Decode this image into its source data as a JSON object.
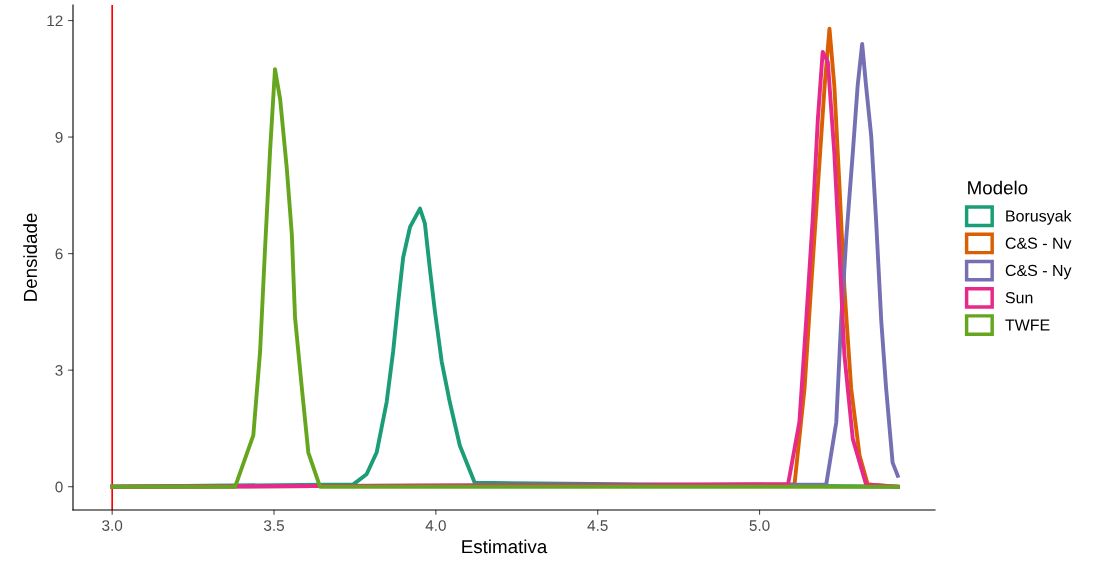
{
  "chart_data": {
    "type": "line",
    "xlabel": "Estimativa",
    "ylabel": "Densidade",
    "legend_title": "Modelo",
    "legend": "right",
    "grid": false,
    "marker": "none",
    "line_style": "solid",
    "xlim": [
      2.879,
      5.542
    ],
    "xticks": [
      {
        "value": 3.0,
        "label": "3.0"
      },
      {
        "value": 3.5,
        "label": "3.5"
      },
      {
        "value": 4.0,
        "label": "4.0"
      },
      {
        "value": 4.5,
        "label": "4.5"
      },
      {
        "value": 5.0,
        "label": "5.0"
      }
    ],
    "ylim": [
      -0.6,
      12.4
    ],
    "yticks": [
      0,
      3,
      6,
      9,
      12
    ],
    "ref_lines": [
      {
        "axis": "x",
        "value": 3.0,
        "label": null,
        "color": "#ff0000"
      }
    ],
    "series": [
      {
        "name": "Borusyak",
        "color": "#1b9e77",
        "x": [
          3.0,
          3.745,
          3.786,
          3.817,
          3.848,
          3.868,
          3.884,
          3.899,
          3.92,
          3.951,
          3.966,
          3.981,
          3.997,
          4.018,
          4.043,
          4.074,
          4.12,
          5.427
        ],
        "values": [
          0,
          0.06,
          0.32,
          0.88,
          2.18,
          3.48,
          4.78,
          5.9,
          6.68,
          7.16,
          6.78,
          5.64,
          4.52,
          3.22,
          2.18,
          1.06,
          0.1,
          0
        ]
      },
      {
        "name": "C&S - Nv",
        "color": "#d95f02",
        "x": [
          3.0,
          5.108,
          5.139,
          5.159,
          5.18,
          5.201,
          5.216,
          5.231,
          5.247,
          5.262,
          5.283,
          5.309,
          5.334,
          5.427
        ],
        "values": [
          0,
          0.06,
          2.53,
          5.12,
          7.72,
          10.32,
          11.79,
          10.32,
          7.72,
          5.12,
          2.53,
          0.8,
          0.06,
          0
        ]
      },
      {
        "name": "C&S - Ny",
        "color": "#7570b3",
        "x": [
          3.0,
          5.206,
          5.237,
          5.252,
          5.268,
          5.288,
          5.303,
          5.317,
          5.329,
          5.345,
          5.36,
          5.376,
          5.391,
          5.411,
          5.427
        ],
        "values": [
          0,
          0.06,
          1.66,
          4.26,
          6.42,
          8.59,
          10.32,
          11.4,
          10.32,
          9.02,
          6.86,
          4.26,
          2.53,
          0.62,
          0.28
        ]
      },
      {
        "name": "Sun",
        "color": "#e7298a",
        "x": [
          3.0,
          5.088,
          5.123,
          5.144,
          5.164,
          5.18,
          5.195,
          5.211,
          5.231,
          5.247,
          5.262,
          5.288,
          5.329,
          5.427
        ],
        "values": [
          0,
          0.06,
          1.66,
          4.26,
          6.86,
          9.45,
          11.19,
          10.93,
          8.59,
          6.0,
          3.4,
          1.23,
          0.06,
          0
        ]
      },
      {
        "name": "TWFE",
        "color": "#66a61e",
        "x": [
          3.0,
          3.38,
          3.436,
          3.457,
          3.472,
          3.488,
          3.503,
          3.519,
          3.539,
          3.555,
          3.565,
          3.585,
          3.606,
          3.642,
          5.427
        ],
        "values": [
          0,
          0,
          1.32,
          3.48,
          6.08,
          8.67,
          10.75,
          9.97,
          8.24,
          6.5,
          4.35,
          2.62,
          0.88,
          0,
          0
        ]
      }
    ]
  }
}
